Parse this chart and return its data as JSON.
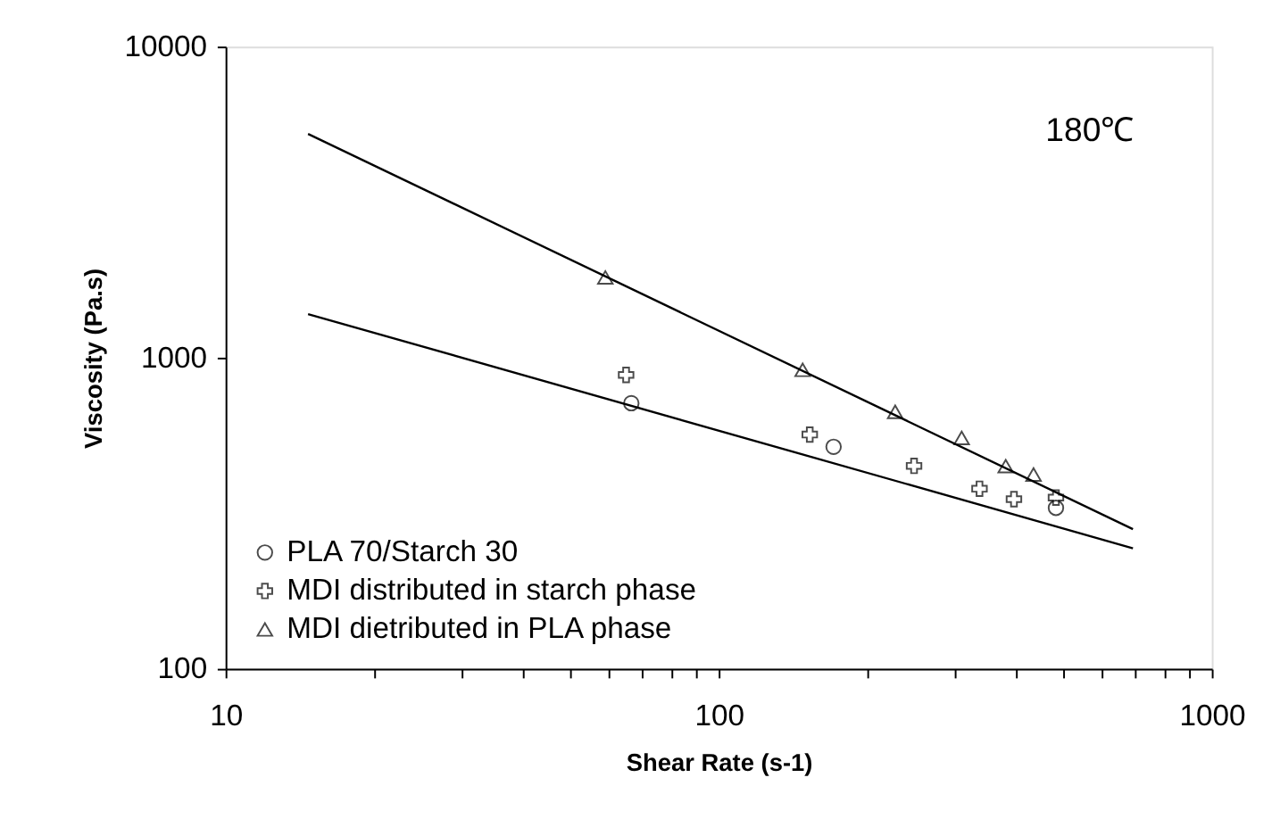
{
  "chart_data": {
    "type": "scatter",
    "xlabel": "Shear Rate (s-1)",
    "ylabel": "Viscosity (Pa.s)",
    "log": "xy",
    "xlim": [
      10,
      1000
    ],
    "ylim": [
      100,
      10000
    ],
    "xticks": [
      10,
      {
        "value": 20,
        "label": null
      },
      {
        "value": 30,
        "label": null
      },
      {
        "value": 40,
        "label": null
      },
      {
        "value": 50,
        "label": null
      },
      {
        "value": 60,
        "label": null
      },
      {
        "value": 70,
        "label": null
      },
      {
        "value": 80,
        "label": null
      },
      {
        "value": 90,
        "label": null
      },
      100,
      {
        "value": 200,
        "label": null
      },
      {
        "value": 300,
        "label": null
      },
      {
        "value": 400,
        "label": null
      },
      {
        "value": 500,
        "label": null
      },
      {
        "value": 600,
        "label": null
      },
      {
        "value": 700,
        "label": null
      },
      {
        "value": 800,
        "label": null
      },
      {
        "value": 900,
        "label": null
      },
      1000
    ],
    "yticks": [
      100,
      1000,
      10000
    ],
    "grid": false,
    "legend": "bottom left",
    "annotations": [
      "180℃"
    ],
    "series": [
      {
        "name": "PLA 70/Starch 30",
        "color": "#000000",
        "marker": "circle",
        "x": [
          66.5,
          171,
          483
        ],
        "values": [
          714,
          517,
          329
        ]
      },
      {
        "name": "MDI distributed in starch phase",
        "color": "#000000",
        "marker": "cross",
        "x": [
          64.9,
          153,
          249,
          338,
          397,
          483
        ],
        "values": [
          880,
          566,
          449,
          379,
          351,
          355
        ]
      },
      {
        "name": "MDI dietributed in PLA phase",
        "color": "#000000",
        "marker": "triangle",
        "x": [
          58.9,
          148,
          228,
          311,
          382,
          435
        ],
        "values": [
          1811,
          914,
          670,
          552,
          448,
          421
        ]
      },
      {
        "type": "line",
        "color": "#000000",
        "marker": "none",
        "line_style": "solid",
        "x": [
          14.7,
          692
        ],
        "values": [
          5240,
          281
        ]
      },
      {
        "type": "line",
        "color": "#000000",
        "marker": "none",
        "line_style": "solid",
        "x": [
          14.7,
          692
        ],
        "values": [
          1381,
          244
        ]
      }
    ]
  }
}
